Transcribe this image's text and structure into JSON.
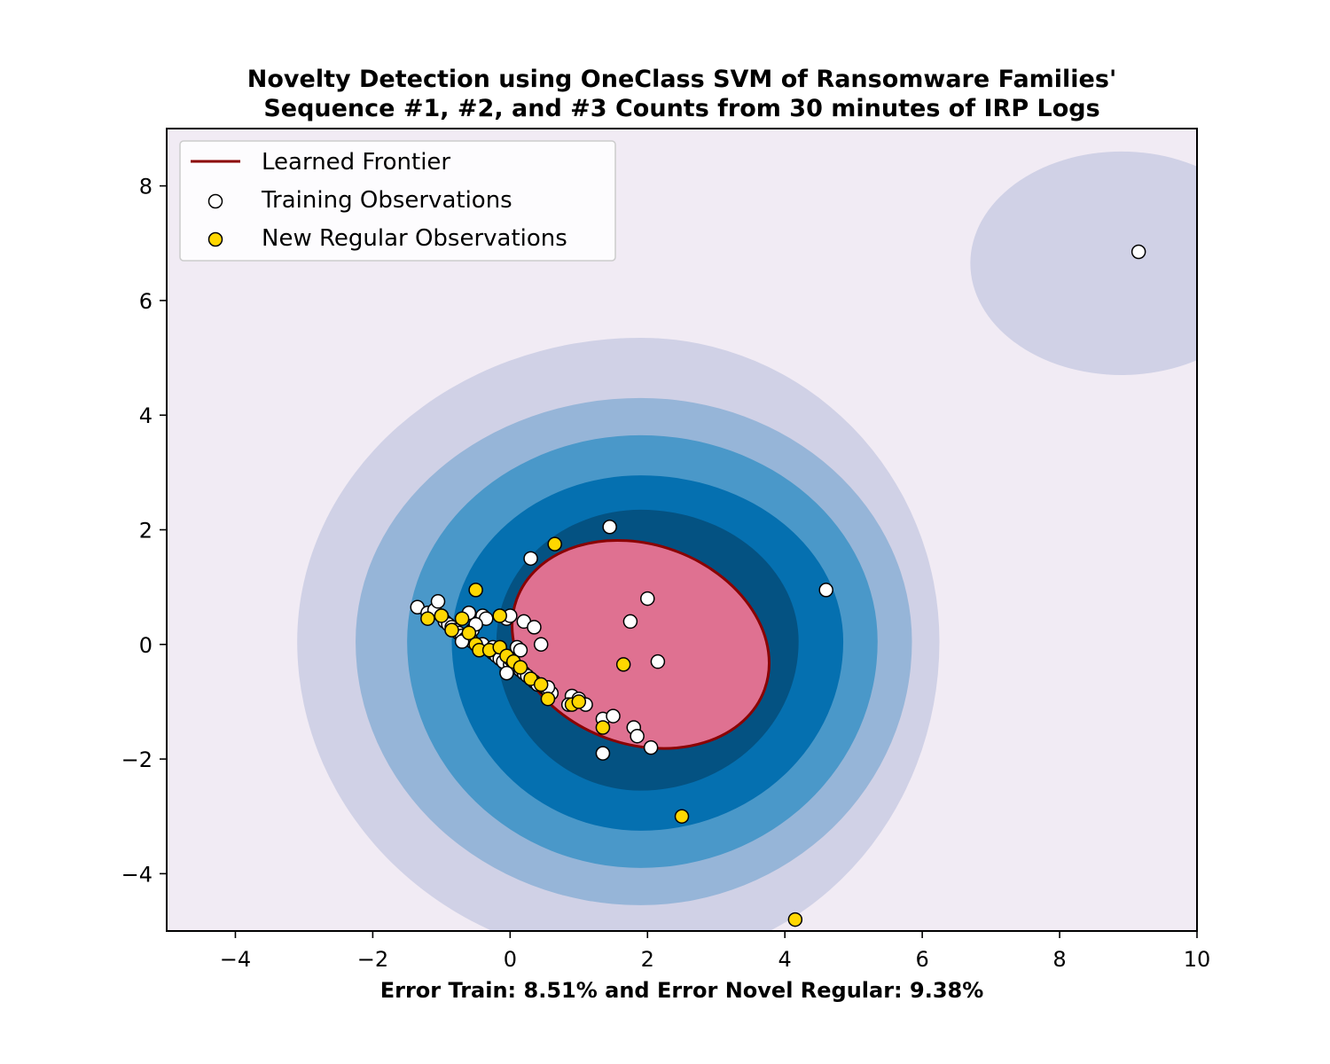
{
  "chart_data": {
    "type": "scatter",
    "title_line1": "Novelty Detection using OneClass SVM of Ransomware Families'",
    "title_line2": "Sequence #1, #2, and #3 Counts from 30 minutes of IRP Logs",
    "xlabel": "Error Train: 8.51% and Error Novel Regular: 9.38%",
    "ylabel": "",
    "xlim": [
      -5,
      10
    ],
    "ylim": [
      -5,
      9
    ],
    "xticks": [
      -4,
      -2,
      0,
      2,
      4,
      6,
      8,
      10
    ],
    "yticks": [
      -4,
      -2,
      0,
      2,
      4,
      6,
      8
    ],
    "grid": false,
    "legend_placement": "top-left",
    "legend": [
      {
        "label": "Learned Frontier",
        "kind": "line",
        "color": "#8b0000"
      },
      {
        "label": "Training Observations",
        "kind": "marker",
        "color": "#ffffff"
      },
      {
        "label": "New Regular Observations",
        "kind": "marker",
        "color": "#ffd700"
      }
    ],
    "background_color": "#f1ebf4",
    "contour_colors": [
      "#d0d1e6",
      "#96b5d8",
      "#4a98c9",
      "#0570b0",
      "#045282"
    ],
    "inlier_region_color": "#df7191",
    "frontier": {
      "center": [
        1.9,
        0.0
      ],
      "rx": 1.92,
      "ry": 1.74,
      "rotation_deg": -20
    },
    "far_cluster": {
      "center": [
        8.9,
        6.65
      ],
      "rx": 2.2,
      "ry": 1.95
    },
    "series": [
      {
        "name": "Training Observations",
        "color": "#ffffff",
        "points": [
          [
            -1.35,
            0.65
          ],
          [
            -1.2,
            0.55
          ],
          [
            -1.1,
            0.6
          ],
          [
            -1.05,
            0.75
          ],
          [
            -1.0,
            0.5
          ],
          [
            -0.95,
            0.4
          ],
          [
            -0.9,
            0.35
          ],
          [
            -0.85,
            0.3
          ],
          [
            -0.8,
            0.25
          ],
          [
            -0.75,
            0.2
          ],
          [
            -0.7,
            0.15
          ],
          [
            -0.65,
            0.1
          ],
          [
            -0.6,
            0.55
          ],
          [
            -0.55,
            0.05
          ],
          [
            -0.5,
            0.0
          ],
          [
            -0.45,
            -0.05
          ],
          [
            -0.4,
            0.5
          ],
          [
            -0.35,
            0.45
          ],
          [
            -0.3,
            -0.1
          ],
          [
            -0.25,
            -0.15
          ],
          [
            -0.2,
            -0.2
          ],
          [
            -0.15,
            -0.25
          ],
          [
            -0.1,
            -0.3
          ],
          [
            -0.05,
            0.45
          ],
          [
            0.0,
            -0.35
          ],
          [
            0.0,
            0.5
          ],
          [
            0.05,
            -0.4
          ],
          [
            0.1,
            -0.05
          ],
          [
            0.15,
            -0.45
          ],
          [
            0.2,
            -0.5
          ],
          [
            0.2,
            0.4
          ],
          [
            0.25,
            -0.55
          ],
          [
            0.3,
            -0.6
          ],
          [
            0.35,
            -0.65
          ],
          [
            0.4,
            -0.7
          ],
          [
            0.45,
            0.0
          ],
          [
            0.5,
            -0.75
          ],
          [
            0.55,
            -0.8
          ],
          [
            0.6,
            -0.85
          ],
          [
            0.9,
            -0.9
          ],
          [
            1.0,
            -0.95
          ],
          [
            1.1,
            -1.05
          ],
          [
            -0.7,
            0.05
          ],
          [
            -0.55,
            0.25
          ],
          [
            -0.4,
            0.0
          ],
          [
            -0.05,
            -0.5
          ],
          [
            0.15,
            -0.1
          ],
          [
            0.3,
            1.5
          ],
          [
            0.35,
            0.3
          ],
          [
            0.55,
            -0.75
          ],
          [
            0.85,
            -1.05
          ],
          [
            1.35,
            -1.3
          ],
          [
            1.5,
            -1.25
          ],
          [
            1.8,
            -1.45
          ],
          [
            1.85,
            -1.6
          ],
          [
            2.05,
            -1.8
          ],
          [
            1.35,
            -1.9
          ],
          [
            1.75,
            0.4
          ],
          [
            2.0,
            0.8
          ],
          [
            2.15,
            -0.3
          ],
          [
            1.45,
            2.05
          ],
          [
            4.6,
            0.95
          ],
          [
            9.15,
            6.85
          ],
          [
            -0.5,
            0.35
          ],
          [
            -0.25,
            -0.05
          ],
          [
            0.0,
            -0.25
          ]
        ]
      },
      {
        "name": "New Regular Observations",
        "color": "#ffd700",
        "points": [
          [
            -1.2,
            0.45
          ],
          [
            -1.0,
            0.5
          ],
          [
            -0.85,
            0.25
          ],
          [
            -0.7,
            0.45
          ],
          [
            -0.6,
            0.2
          ],
          [
            -0.5,
            0.0
          ],
          [
            -0.45,
            -0.1
          ],
          [
            -0.3,
            -0.1
          ],
          [
            -0.15,
            -0.05
          ],
          [
            -0.05,
            -0.2
          ],
          [
            0.05,
            -0.3
          ],
          [
            0.15,
            -0.4
          ],
          [
            0.3,
            -0.6
          ],
          [
            0.45,
            -0.7
          ],
          [
            0.55,
            -0.95
          ],
          [
            0.9,
            -1.05
          ],
          [
            1.0,
            -1.0
          ],
          [
            -0.5,
            0.95
          ],
          [
            -0.15,
            0.5
          ],
          [
            0.65,
            1.75
          ],
          [
            1.35,
            -1.45
          ],
          [
            1.65,
            -0.35
          ],
          [
            2.5,
            -3.0
          ],
          [
            4.15,
            -4.8
          ]
        ]
      }
    ]
  }
}
